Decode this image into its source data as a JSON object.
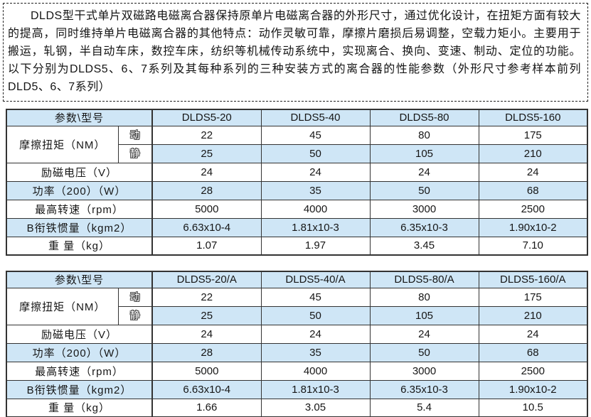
{
  "intro": {
    "text": "DLDS型干式单片双磁路电磁离合器保持原单片电磁离合器的外形尺寸，通过优化设计，在扭矩方面有较大的提高，同时维持单片电磁离合器的其他特点：动作灵敏可靠，摩擦片磨损后易调整，空载力矩小。主要用于搬运，轧钢，半自动车床，数控车床，纺织等机械传动系统中，实现离合、换向、变速、制动、定位的功能。以下分别为DLDS5、6、7系列及其每种系列的三种安装方式的离合器的性能参数（外形尺寸参考样本前列DLD5、6、7系列）"
  },
  "colors": {
    "row_shade": "#cfe6f6",
    "table_border": "#333333",
    "text": "#161616"
  },
  "tables": [
    {
      "name": "dlds5-series",
      "header": {
        "param_label": "参数\\型号",
        "models": [
          "DLDS5-20",
          "DLDS5-40",
          "DLDS5-80",
          "DLDS5-160"
        ]
      },
      "rows": [
        {
          "label": "摩擦扭矩（NM）",
          "sub": "动",
          "shade": false,
          "label_shade": false,
          "values": [
            "22",
            "45",
            "80",
            "175"
          ]
        },
        {
          "sub": "静",
          "shade": true,
          "values": [
            "25",
            "50",
            "105",
            "210"
          ]
        },
        {
          "label": "励磁电压（V）",
          "shade": false,
          "label_shade": false,
          "values": [
            "24",
            "24",
            "24",
            "24"
          ]
        },
        {
          "label": "功率（200）（W）",
          "shade": true,
          "label_shade": true,
          "values": [
            "28",
            "35",
            "50",
            "68"
          ]
        },
        {
          "label": "最高转速（rpm）",
          "shade": false,
          "label_shade": false,
          "values": [
            "5000",
            "4000",
            "3000",
            "2500"
          ]
        },
        {
          "label": "B衔铁惯量（kgm2）",
          "shade": true,
          "label_shade": true,
          "values": [
            "6.63x10-4",
            "1.81x10-3",
            "6.35x10-3",
            "1.90x10-2"
          ]
        },
        {
          "label": "重 量（kg）",
          "shade": false,
          "label_shade": false,
          "values": [
            "1.07",
            "1.97",
            "3.45",
            "7.10"
          ]
        }
      ]
    },
    {
      "name": "dlds5-a-series",
      "header": {
        "param_label": "参数\\型号",
        "models": [
          "DLDS5-20/A",
          "DLDS5-40/A",
          "DLDS5-80/A",
          "DLDS5-160/A"
        ]
      },
      "rows": [
        {
          "label": "摩擦扭矩（NM）",
          "sub": "动",
          "shade": false,
          "label_shade": false,
          "values": [
            "22",
            "45",
            "80",
            "175"
          ]
        },
        {
          "sub": "静",
          "shade": true,
          "values": [
            "25",
            "50",
            "105",
            "210"
          ]
        },
        {
          "label": "励磁电压（V）",
          "shade": false,
          "label_shade": false,
          "values": [
            "24",
            "24",
            "24",
            "24"
          ]
        },
        {
          "label": "功率（200）（W）",
          "shade": true,
          "label_shade": true,
          "values": [
            "28",
            "35",
            "50",
            "68"
          ]
        },
        {
          "label": "最高转速（rpm）",
          "shade": false,
          "label_shade": false,
          "values": [
            "5000",
            "4000",
            "3000",
            "2500"
          ]
        },
        {
          "label": "B衔铁惯量（kgm2）",
          "shade": true,
          "label_shade": true,
          "values": [
            "6.63x10-4",
            "1.81x10-3",
            "6.35x10-3",
            "1.90x10-2"
          ]
        },
        {
          "label": "重 量（kg）",
          "shade": false,
          "label_shade": false,
          "values": [
            "1.66",
            "3.05",
            "5.4",
            "10.5"
          ]
        }
      ]
    }
  ]
}
